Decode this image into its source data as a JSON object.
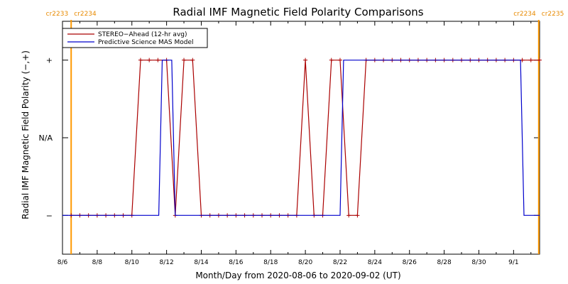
{
  "chart_data": {
    "type": "line",
    "title": "Radial IMF Magnetic Field Polarity Comparisons",
    "xlabel": "Month/Day from 2020-08-06 to 2020-09-02 (UT)",
    "ylabel": "Radial IMF Magnetic Field Polarity (−,+)",
    "x_unit": "days since 2020-08-06 00:00 UT",
    "xlim": [
      0,
      27.5
    ],
    "ylim": [
      -1.5,
      1.5
    ],
    "y_ticks": [
      {
        "value": 1,
        "label": "+"
      },
      {
        "value": 0,
        "label": "N/A"
      },
      {
        "value": -1,
        "label": "−"
      }
    ],
    "x_ticks": [
      {
        "value": 0,
        "label": "8/6"
      },
      {
        "value": 2,
        "label": "8/8"
      },
      {
        "value": 4,
        "label": "8/10"
      },
      {
        "value": 6,
        "label": "8/12"
      },
      {
        "value": 8,
        "label": "8/14"
      },
      {
        "value": 10,
        "label": "8/16"
      },
      {
        "value": 12,
        "label": "8/18"
      },
      {
        "value": 14,
        "label": "8/20"
      },
      {
        "value": 16,
        "label": "8/22"
      },
      {
        "value": 18,
        "label": "8/24"
      },
      {
        "value": 20,
        "label": "8/26"
      },
      {
        "value": 22,
        "label": "8/28"
      },
      {
        "value": 24,
        "label": "8/30"
      },
      {
        "value": 26,
        "label": "9/1"
      }
    ],
    "carrington_markers": [
      {
        "x": 0.5,
        "label_left": "cr2233",
        "label_right": "cr2234",
        "side": "left"
      },
      {
        "x": 27.45,
        "label_left": "cr2234",
        "label_right": "cr2235",
        "side": "right"
      }
    ],
    "legend_position": "top-left",
    "series": [
      {
        "name": "STEREO−Ahead (12-hr avg)",
        "color": "#aa0000",
        "marker": "+",
        "x": [
          0.5,
          1.0,
          1.5,
          2.0,
          2.5,
          3.0,
          3.5,
          4.0,
          4.5,
          5.0,
          5.5,
          6.0,
          6.5,
          7.0,
          7.5,
          8.0,
          8.5,
          9.0,
          9.5,
          10.0,
          10.5,
          11.0,
          11.5,
          12.0,
          12.5,
          13.0,
          13.5,
          14.0,
          14.5,
          15.0,
          15.5,
          16.0,
          16.5,
          17.0,
          17.5,
          18.0,
          18.5,
          19.0,
          19.5,
          20.0,
          20.5,
          21.0,
          21.5,
          22.0,
          22.5,
          23.0,
          23.5,
          24.0,
          24.5,
          25.0,
          25.5,
          26.0,
          26.5,
          27.0,
          27.5
        ],
        "y": [
          -1,
          -1,
          -1,
          -1,
          -1,
          -1,
          -1,
          -1,
          1,
          1,
          1,
          1,
          -1,
          1,
          1,
          -1,
          -1,
          -1,
          -1,
          -1,
          -1,
          -1,
          -1,
          -1,
          -1,
          -1,
          -1,
          1,
          -1,
          -1,
          1,
          1,
          -1,
          -1,
          1,
          1,
          1,
          1,
          1,
          1,
          1,
          1,
          1,
          1,
          1,
          1,
          1,
          1,
          1,
          1,
          1,
          1,
          1,
          1,
          1
        ]
      },
      {
        "name": "Predictive Science MAS Model",
        "color": "#0000cc",
        "marker": "none",
        "x": [
          0.0,
          5.55,
          5.75,
          6.3,
          6.5,
          16.0,
          16.2,
          26.4,
          26.6,
          27.5
        ],
        "y": [
          -1,
          -1,
          1,
          1,
          -1,
          -1,
          1,
          1,
          -1,
          -1
        ]
      }
    ]
  }
}
